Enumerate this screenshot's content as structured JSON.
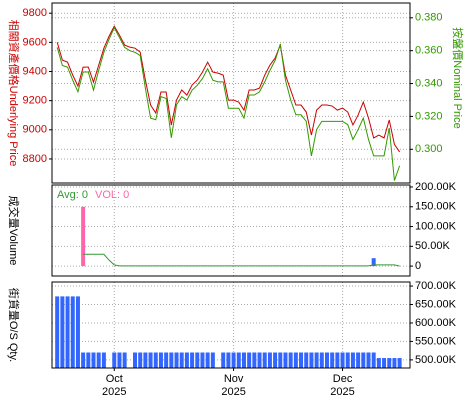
{
  "chart_data": [
    {
      "type": "line",
      "y_label": "相關資產價格Underlying Price",
      "y_label_color": "#cc0000",
      "y2_label": "按盤價Nominal Price",
      "y2_label_color": "#339900",
      "ylim": [
        8635,
        9870
      ],
      "yticks": [
        8800,
        9000,
        9200,
        9400,
        9600,
        9800
      ],
      "y_side": "left",
      "ytick_color": "#cc0000",
      "y2lim": [
        0.2795,
        0.389
      ],
      "y2ticks": [
        {
          "value": 0.3,
          "label": "0.300"
        },
        {
          "value": 0.32,
          "label": "0.320"
        },
        {
          "value": 0.34,
          "label": "0.340"
        },
        {
          "value": 0.36,
          "label": "0.360"
        },
        {
          "value": 0.38,
          "label": "0.380"
        }
      ],
      "y2tick_color": "#339900",
      "grid": true,
      "series": [
        {
          "name": "Underlying Price",
          "color": "#cc0000",
          "values": [
            9601,
            9478,
            9464,
            9375,
            9300,
            9430,
            9430,
            9327,
            9444,
            9560,
            9642,
            9711,
            9650,
            9581,
            9567,
            9560,
            9533,
            9341,
            9170,
            9115,
            9259,
            9259,
            9033,
            9204,
            9273,
            9238,
            9307,
            9341,
            9396,
            9464,
            9396,
            9389,
            9375,
            9204,
            9204,
            9190,
            9135,
            9273,
            9273,
            9286,
            9375,
            9444,
            9492,
            9581,
            9375,
            9273,
            9170,
            9170,
            9122,
            8964,
            9135,
            9170,
            9170,
            9163,
            9135,
            9149,
            9122,
            9033,
            9101,
            9190,
            9081,
            8944,
            8964,
            8944,
            9067,
            8900,
            8848
          ]
        },
        {
          "name": "Nominal Price",
          "color": "#339900",
          "axis": "y2",
          "values": [
            0.362,
            0.351,
            0.35,
            0.342,
            0.335,
            0.347,
            0.347,
            0.336,
            0.348,
            0.359,
            0.367,
            0.374,
            0.368,
            0.362,
            0.36,
            0.359,
            0.357,
            0.337,
            0.319,
            0.318,
            0.332,
            0.331,
            0.307,
            0.327,
            0.332,
            0.33,
            0.336,
            0.339,
            0.343,
            0.349,
            0.342,
            0.341,
            0.341,
            0.325,
            0.325,
            0.325,
            0.319,
            0.333,
            0.333,
            0.335,
            0.341,
            0.348,
            0.354,
            0.364,
            0.342,
            0.33,
            0.321,
            0.321,
            0.317,
            0.296,
            0.312,
            0.317,
            0.317,
            0.317,
            0.317,
            0.317,
            0.315,
            0.306,
            0.312,
            0.319,
            0.306,
            0.296,
            0.296,
            0.296,
            0.313,
            0.281,
            0.29
          ]
        }
      ]
    },
    {
      "type": "bar",
      "y_label": "成交量Volume",
      "y_label_color": "#000000",
      "ylim": [
        -25000,
        205000
      ],
      "yticks": [
        0,
        {
          "value": 50000,
          "label": "50.00K"
        },
        {
          "value": 100000,
          "label": "100.00K"
        },
        {
          "value": 150000,
          "label": "150.00K"
        },
        {
          "value": 200000,
          "label": "200.00K"
        }
      ],
      "y_side": "right",
      "ytick_color": "#000000",
      "grid": true,
      "series": [
        {
          "name": "VOL: 0",
          "type": "bar",
          "color": "#ff66aa",
          "point_colors": {
            "61": "#3366ff"
          },
          "values": [
            0,
            0,
            0,
            0,
            0,
            150000,
            0,
            0,
            0,
            0,
            0,
            0,
            0,
            0,
            0,
            0,
            0,
            0,
            0,
            0,
            0,
            0,
            0,
            0,
            0,
            0,
            0,
            0,
            0,
            0,
            0,
            0,
            0,
            0,
            0,
            0,
            0,
            0,
            0,
            0,
            0,
            0,
            0,
            0,
            0,
            0,
            0,
            0,
            0,
            0,
            0,
            0,
            0,
            0,
            0,
            0,
            0,
            0,
            0,
            0,
            0,
            20000,
            0,
            0,
            0,
            0,
            0
          ]
        },
        {
          "name": "Avg: 0",
          "type": "line",
          "color": "#339933",
          "values": [
            null,
            null,
            null,
            null,
            null,
            30000,
            30000,
            30000,
            30000,
            30000,
            15000,
            3000,
            500,
            500,
            500,
            500,
            500,
            500,
            500,
            500,
            500,
            500,
            500,
            500,
            500,
            500,
            500,
            500,
            500,
            500,
            500,
            500,
            500,
            500,
            500,
            500,
            500,
            500,
            500,
            500,
            500,
            500,
            500,
            500,
            500,
            500,
            500,
            500,
            500,
            500,
            500,
            500,
            500,
            500,
            500,
            500,
            500,
            500,
            500,
            500,
            500,
            3000,
            3000,
            3000,
            3000,
            3000,
            0
          ]
        }
      ]
    },
    {
      "type": "bar",
      "y_label": "街貨量O/S Qty.",
      "y_label_color": "#000000",
      "ylim": [
        478000,
        711000
      ],
      "yticks": [
        {
          "value": 500000,
          "label": "500.00K"
        },
        {
          "value": 550000,
          "label": "550.00K"
        },
        {
          "value": 600000,
          "label": "600.00K"
        },
        {
          "value": 650000,
          "label": "650.00K"
        },
        {
          "value": 700000,
          "label": "700.00K"
        }
      ],
      "y_side": "right",
      "ytick_color": "#000000",
      "grid": true,
      "xlim": [
        -1,
        68
      ],
      "xticks": [
        {
          "value": 11,
          "label": "Oct"
        },
        {
          "value": 34,
          "label": "Nov"
        },
        {
          "value": 55,
          "label": "Dec"
        }
      ],
      "xtick_years": [
        "2025",
        "2025",
        "2025"
      ],
      "series": [
        {
          "name": "O/S Qty.",
          "type": "bar",
          "color": "#3366ff",
          "values": [
            672000,
            672000,
            672000,
            672000,
            672000,
            520000,
            520000,
            520000,
            520000,
            520000,
            null,
            520000,
            520000,
            520000,
            null,
            520000,
            520000,
            520000,
            520000,
            520000,
            520000,
            520000,
            520000,
            520000,
            520000,
            520000,
            520000,
            520000,
            520000,
            520000,
            520000,
            null,
            520000,
            520000,
            520000,
            520000,
            520000,
            520000,
            520000,
            520000,
            520000,
            520000,
            520000,
            520000,
            520000,
            520000,
            520000,
            520000,
            520000,
            520000,
            520000,
            520000,
            520000,
            520000,
            520000,
            520000,
            520000,
            520000,
            520000,
            520000,
            520000,
            520000,
            505000,
            505000,
            505000,
            505000,
            505000
          ]
        }
      ]
    }
  ]
}
